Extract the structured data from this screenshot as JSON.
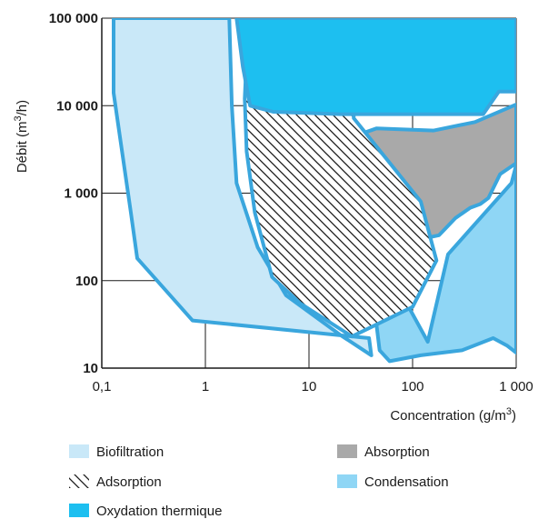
{
  "chart_data": {
    "type": "area",
    "title": "",
    "xlabel_main": "Concentration (g/m",
    "xlabel_sup": "3",
    "xlabel_end": ")",
    "ylabel_main": "Débit (m",
    "ylabel_sup": "3",
    "ylabel_end": "/h)",
    "x_scale": "log",
    "y_scale": "log",
    "xlim": [
      0.1,
      1000
    ],
    "ylim": [
      10,
      100000
    ],
    "grid": true,
    "x_ticks": [
      {
        "value": 0.1,
        "label": "0,1"
      },
      {
        "value": 1,
        "label": "1"
      },
      {
        "value": 10,
        "label": "10"
      },
      {
        "value": 100,
        "label": "100"
      },
      {
        "value": 1000,
        "label": "1 000"
      }
    ],
    "y_ticks": [
      {
        "value": 10,
        "label": "10"
      },
      {
        "value": 100,
        "label": "100"
      },
      {
        "value": 1000,
        "label": "1 000"
      },
      {
        "value": 10000,
        "label": "10 000"
      },
      {
        "value": 100000,
        "label": "100 000"
      }
    ],
    "legend_placement": "bottom",
    "series": [
      {
        "name": "Biofiltration",
        "color": "#c9e8f8",
        "pattern": "solid",
        "points": [
          [
            0.13,
            100000
          ],
          [
            0.13,
            14000
          ],
          [
            0.19,
            620
          ],
          [
            0.22,
            180
          ],
          [
            0.75,
            35
          ],
          [
            38,
            22
          ],
          [
            40,
            14
          ],
          [
            20,
            24
          ],
          [
            6.0,
            68
          ],
          [
            3.2,
            240
          ],
          [
            2.0,
            1300
          ],
          [
            1.8,
            10000
          ],
          [
            1.7,
            100000
          ]
        ]
      },
      {
        "name": "Condensation",
        "color": "#8fd6f5",
        "pattern": "solid",
        "points": [
          [
            60,
            95
          ],
          [
            90,
            52
          ],
          [
            140,
            20
          ],
          [
            220,
            200
          ],
          [
            900,
            1300
          ],
          [
            1000,
            2100
          ],
          [
            1000,
            15
          ],
          [
            820,
            18
          ],
          [
            600,
            22
          ],
          [
            300,
            16
          ],
          [
            120,
            14
          ],
          [
            60,
            12
          ],
          [
            48,
            16
          ],
          [
            45,
            30
          ],
          [
            45,
            70
          ]
        ]
      },
      {
        "name": "Absorption",
        "color": "#a9a9a9",
        "pattern": "solid",
        "points": [
          [
            11,
            3000
          ],
          [
            15,
            3500
          ],
          [
            45,
            5500
          ],
          [
            160,
            5200
          ],
          [
            400,
            6500
          ],
          [
            1000,
            10300
          ],
          [
            1000,
            2200
          ],
          [
            700,
            1650
          ],
          [
            540,
            880
          ],
          [
            450,
            750
          ],
          [
            360,
            680
          ],
          [
            260,
            520
          ],
          [
            180,
            330
          ],
          [
            70,
            260
          ],
          [
            30,
            250
          ],
          [
            20,
            320
          ],
          [
            12,
            650
          ],
          [
            11,
            1200
          ],
          [
            10.5,
            2000
          ]
        ]
      },
      {
        "name": "Adsorption",
        "color": "#1a1a1a",
        "pattern": "hatch",
        "points": [
          [
            2.6,
            100000
          ],
          [
            4.5,
            100000
          ],
          [
            10,
            46000
          ],
          [
            27,
            11000
          ],
          [
            27,
            7200
          ],
          [
            120,
            800
          ],
          [
            170,
            170
          ],
          [
            100,
            50
          ],
          [
            26,
            23
          ],
          [
            8.2,
            55
          ],
          [
            4.4,
            110
          ],
          [
            3.0,
            600
          ],
          [
            2.5,
            3000
          ],
          [
            2.4,
            12000
          ]
        ]
      },
      {
        "name": "Oxydation thermique",
        "color": "#1dbff0",
        "pattern": "solid",
        "points": [
          [
            2.0,
            100000
          ],
          [
            1000,
            100000
          ],
          [
            1000,
            14500
          ],
          [
            680,
            14500
          ],
          [
            480,
            8000
          ],
          [
            170,
            8000
          ],
          [
            20,
            8000
          ],
          [
            4.5,
            8500
          ],
          [
            2.7,
            10000
          ],
          [
            2.3,
            28000
          ]
        ]
      }
    ],
    "legend": [
      {
        "label": "Biofiltration",
        "color": "#c9e8f8",
        "pattern": "solid"
      },
      {
        "label": "Absorption",
        "color": "#a9a9a9",
        "pattern": "solid"
      },
      {
        "label": "Adsorption",
        "color": "#1a1a1a",
        "pattern": "hatch"
      },
      {
        "label": "Condensation",
        "color": "#8fd6f5",
        "pattern": "solid"
      },
      {
        "label": "Oxydation thermique",
        "color": "#1dbff0",
        "pattern": "solid"
      }
    ],
    "border_color": "#3aa6dd"
  }
}
